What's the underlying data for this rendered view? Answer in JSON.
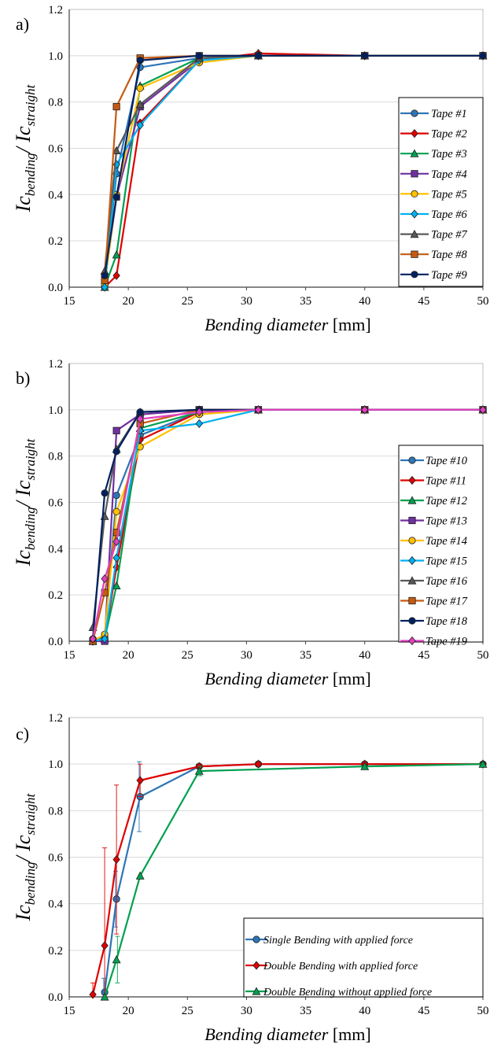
{
  "chart_data": [
    {
      "type": "line",
      "panel_label": "a)",
      "ylabel_main": "Ic",
      "ylabel_num_sub": "bending",
      "ylabel_sep": "/ Ic",
      "ylabel_den_sub": "straight",
      "xlabel_italic": "Bending diameter",
      "xlabel_unit": " [mm]",
      "xlim": [
        15,
        50
      ],
      "ylim": [
        0,
        1.2
      ],
      "xticks": [
        "15",
        "20",
        "25",
        "30",
        "35",
        "40",
        "45",
        "50"
      ],
      "yticks": [
        "0.0",
        "0.2",
        "0.4",
        "0.6",
        "0.8",
        "1.0",
        "1.2"
      ],
      "grid": "y-major",
      "legend_position": "right",
      "series": [
        {
          "name": "Tape #1",
          "color": "#2e75b6",
          "marker": "circle",
          "x": [
            18,
            19,
            21,
            26,
            31,
            40,
            50
          ],
          "y": [
            0.0,
            0.49,
            0.95,
            0.99,
            1.0,
            1.0,
            1.0
          ]
        },
        {
          "name": "Tape #2",
          "color": "#e00000",
          "marker": "diamond",
          "x": [
            18,
            19,
            21,
            26,
            31,
            40,
            50
          ],
          "y": [
            0.0,
            0.05,
            0.71,
            0.98,
            1.01,
            1.0,
            1.0
          ]
        },
        {
          "name": "Tape #3",
          "color": "#00a050",
          "marker": "triangle",
          "x": [
            18,
            19,
            21,
            26,
            31,
            40,
            50
          ],
          "y": [
            0.0,
            0.14,
            0.87,
            0.99,
            1.0,
            1.0,
            1.0
          ]
        },
        {
          "name": "Tape #4",
          "color": "#7030a0",
          "marker": "square",
          "x": [
            18,
            19,
            21,
            26,
            31,
            40,
            50
          ],
          "y": [
            0.02,
            0.39,
            0.78,
            0.98,
            1.0,
            1.0,
            1.0
          ]
        },
        {
          "name": "Tape #5",
          "color": "#ffc000",
          "marker": "circle",
          "x": [
            18,
            19,
            21,
            26,
            31,
            40,
            50
          ],
          "y": [
            0.01,
            0.4,
            0.86,
            0.97,
            1.0,
            1.0,
            1.0
          ]
        },
        {
          "name": "Tape #6",
          "color": "#00b0f0",
          "marker": "diamond",
          "x": [
            18,
            19,
            21,
            26,
            31,
            40,
            50
          ],
          "y": [
            0.0,
            0.53,
            0.7,
            0.98,
            1.0,
            1.0,
            1.0
          ]
        },
        {
          "name": "Tape #7",
          "color": "#595959",
          "marker": "triangle",
          "x": [
            18,
            19,
            21,
            26,
            31,
            40,
            50
          ],
          "y": [
            0.07,
            0.59,
            0.79,
            0.99,
            1.0,
            1.0,
            1.0
          ]
        },
        {
          "name": "Tape #8",
          "color": "#c55a11",
          "marker": "square",
          "x": [
            18,
            19,
            21,
            26,
            31,
            40,
            50
          ],
          "y": [
            0.03,
            0.78,
            0.99,
            1.0,
            1.0,
            1.0,
            1.0
          ]
        },
        {
          "name": "Tape #9",
          "color": "#002060",
          "marker": "circle",
          "x": [
            18,
            19,
            21,
            26,
            31,
            40,
            50
          ],
          "y": [
            0.05,
            0.39,
            0.98,
            1.0,
            1.0,
            1.0,
            1.0
          ]
        }
      ]
    },
    {
      "type": "line",
      "panel_label": "b)",
      "ylabel_main": "Ic",
      "ylabel_num_sub": "bending",
      "ylabel_sep": "/ Ic",
      "ylabel_den_sub": "straight",
      "xlabel_italic": "Bending diameter",
      "xlabel_unit": " [mm]",
      "xlim": [
        15,
        50
      ],
      "ylim": [
        0,
        1.2
      ],
      "xticks": [
        "15",
        "20",
        "25",
        "30",
        "35",
        "40",
        "45",
        "50"
      ],
      "yticks": [
        "0.0",
        "0.2",
        "0.4",
        "0.6",
        "0.8",
        "1.0",
        "1.2"
      ],
      "grid": "y-major",
      "legend_position": "right",
      "series": [
        {
          "name": "Tape #10",
          "color": "#2e75b6",
          "marker": "circle",
          "x": [
            17,
            18,
            19,
            21,
            26,
            31,
            40,
            50
          ],
          "y": [
            0.0,
            0.02,
            0.63,
            0.89,
            0.99,
            1.0,
            1.0,
            1.0
          ]
        },
        {
          "name": "Tape #11",
          "color": "#e00000",
          "marker": "diamond",
          "x": [
            17,
            18,
            19,
            21,
            26,
            31,
            40,
            50
          ],
          "y": [
            0.0,
            0.01,
            0.32,
            0.87,
            0.99,
            1.0,
            1.0,
            1.0
          ]
        },
        {
          "name": "Tape #12",
          "color": "#00a050",
          "marker": "triangle",
          "x": [
            17,
            18,
            19,
            21,
            26,
            31,
            40,
            50
          ],
          "y": [
            0.0,
            0.01,
            0.24,
            0.92,
            0.99,
            1.0,
            1.0,
            1.0
          ]
        },
        {
          "name": "Tape #13",
          "color": "#7030a0",
          "marker": "square",
          "x": [
            17,
            18,
            19,
            21,
            26,
            31,
            40,
            50
          ],
          "y": [
            0.0,
            0.0,
            0.91,
            0.98,
            1.0,
            1.0,
            1.0,
            1.0
          ]
        },
        {
          "name": "Tape #14",
          "color": "#ffc000",
          "marker": "circle",
          "x": [
            17,
            18,
            19,
            21,
            26,
            31,
            40,
            50
          ],
          "y": [
            0.0,
            0.03,
            0.56,
            0.84,
            0.98,
            1.0,
            1.0,
            1.0
          ]
        },
        {
          "name": "Tape #15",
          "color": "#00b0f0",
          "marker": "diamond",
          "x": [
            17,
            18,
            19,
            21,
            26,
            31,
            40,
            50
          ],
          "y": [
            0.0,
            0.01,
            0.36,
            0.91,
            0.94,
            1.0,
            1.0,
            1.0
          ]
        },
        {
          "name": "Tape #16",
          "color": "#595959",
          "marker": "triangle",
          "x": [
            17,
            18,
            19,
            21,
            26,
            31,
            40,
            50
          ],
          "y": [
            0.06,
            0.54,
            0.83,
            0.99,
            1.0,
            1.0,
            1.0,
            1.0
          ]
        },
        {
          "name": "Tape #17",
          "color": "#c55a11",
          "marker": "square",
          "x": [
            17,
            18,
            19,
            21,
            26,
            31,
            40,
            50
          ],
          "y": [
            0.0,
            0.21,
            0.47,
            0.94,
            1.0,
            1.0,
            1.0,
            1.0
          ]
        },
        {
          "name": "Tape #18",
          "color": "#002060",
          "marker": "circle",
          "x": [
            17,
            18,
            19,
            21,
            26,
            31,
            40,
            50
          ],
          "y": [
            0.01,
            0.64,
            0.82,
            0.99,
            1.0,
            1.0,
            1.0,
            1.0
          ]
        },
        {
          "name": "Tape #19",
          "color": "#e040c0",
          "marker": "diamond",
          "x": [
            17,
            18,
            19,
            21,
            26,
            31,
            40,
            50
          ],
          "y": [
            0.01,
            0.27,
            0.43,
            0.96,
            0.99,
            1.0,
            1.0,
            1.0
          ]
        }
      ]
    },
    {
      "type": "line",
      "panel_label": "c)",
      "ylabel_main": "Ic",
      "ylabel_num_sub": "bending",
      "ylabel_sep": "/ Ic",
      "ylabel_den_sub": "straight",
      "xlabel_italic": "Bending diameter",
      "xlabel_unit": " [mm]",
      "xlim": [
        15,
        50
      ],
      "ylim": [
        0,
        1.2
      ],
      "xticks": [
        "15",
        "20",
        "25",
        "30",
        "35",
        "40",
        "45",
        "50"
      ],
      "yticks": [
        "0.0",
        "0.2",
        "0.4",
        "0.6",
        "0.8",
        "1.0",
        "1.2"
      ],
      "grid": "y-major",
      "legend_position": "bottom-right",
      "series": [
        {
          "name": "Single Bending with applied force",
          "color": "#2e75b6",
          "marker": "circle",
          "x": [
            18,
            19,
            21,
            26,
            31,
            40,
            50
          ],
          "y": [
            0.02,
            0.42,
            0.86,
            0.99,
            1.0,
            1.0,
            1.0
          ],
          "err": [
            0.06,
            0.12,
            0.15,
            0.01,
            0,
            0,
            0
          ]
        },
        {
          "name": "Double Bending with applied force",
          "color": "#e00000",
          "marker": "diamond",
          "x": [
            17,
            18,
            19,
            21,
            26,
            31,
            40,
            50
          ],
          "y": [
            0.01,
            0.22,
            0.59,
            0.93,
            0.99,
            1.0,
            1.0,
            1.0
          ],
          "err": [
            0.05,
            0.42,
            0.32,
            0.07,
            0.01,
            0,
            0,
            0
          ]
        },
        {
          "name": "Double Bending without applied force",
          "color": "#00a050",
          "marker": "triangle",
          "x": [
            18,
            19,
            21,
            26,
            40,
            50
          ],
          "y": [
            0.0,
            0.16,
            0.52,
            0.97,
            0.99,
            1.0
          ],
          "err": [
            0,
            0.1,
            0,
            0.02,
            0,
            0
          ]
        }
      ]
    }
  ]
}
